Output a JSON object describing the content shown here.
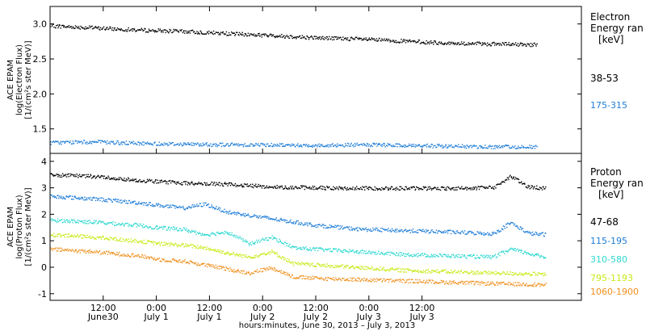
{
  "chart_data": [
    {
      "type": "scatter",
      "panel": "electron",
      "ylabel_lines": [
        "ACE EPAM",
        "log(Electron Flux)",
        "[1/(cm²s ster MeV)]"
      ],
      "ylim": [
        1.15,
        3.25
      ],
      "yticks": [
        {
          "value": 1.5,
          "label": "1.5"
        },
        {
          "value": 2.0,
          "label": "2.0"
        },
        {
          "value": 2.5,
          "label": "2.5"
        },
        {
          "value": 3.0,
          "label": "3.0"
        }
      ],
      "legend_title_lines": [
        "Electron",
        "Energy ran",
        "[keV]"
      ],
      "series": [
        {
          "name": "38-53",
          "color": "#000000",
          "points": [
            [
              0,
              2.98
            ],
            [
              10,
              2.95
            ],
            [
              20,
              2.92
            ],
            [
              30,
              2.9
            ],
            [
              40,
              2.87
            ],
            [
              50,
              2.84
            ],
            [
              60,
              2.81
            ],
            [
              70,
              2.79
            ],
            [
              80,
              2.76
            ],
            [
              90,
              2.73
            ],
            [
              100,
              2.72
            ],
            [
              110,
              2.71
            ]
          ]
        },
        {
          "name": "175-315",
          "color": "#1e7dd8",
          "points": [
            [
              0,
              1.31
            ],
            [
              10,
              1.32
            ],
            [
              20,
              1.3
            ],
            [
              30,
              1.29
            ],
            [
              40,
              1.28
            ],
            [
              50,
              1.28
            ],
            [
              60,
              1.27
            ],
            [
              70,
              1.28
            ],
            [
              80,
              1.27
            ],
            [
              90,
              1.26
            ],
            [
              100,
              1.25
            ],
            [
              110,
              1.25
            ]
          ]
        }
      ]
    },
    {
      "type": "scatter",
      "panel": "proton",
      "ylabel_lines": [
        "ACE EPAM",
        "log(Proton Flux)",
        "[1/(cm²s ster MeV)]"
      ],
      "ylim": [
        -1.25,
        4.3
      ],
      "yticks": [
        {
          "value": -1,
          "label": "-1"
        },
        {
          "value": 0,
          "label": "0"
        },
        {
          "value": 1,
          "label": "1"
        },
        {
          "value": 2,
          "label": "2"
        },
        {
          "value": 3,
          "label": "3"
        },
        {
          "value": 4,
          "label": "4"
        }
      ],
      "legend_title_lines": [
        "Proton",
        "Energy ran",
        "[keV]"
      ],
      "series": [
        {
          "name": "47-68",
          "color": "#000000",
          "points": [
            [
              0,
              3.5
            ],
            [
              10,
              3.45
            ],
            [
              20,
              3.3
            ],
            [
              30,
              3.2
            ],
            [
              40,
              3.15
            ],
            [
              50,
              3.05
            ],
            [
              60,
              3.02
            ],
            [
              70,
              3.0
            ],
            [
              80,
              3.0
            ],
            [
              90,
              3.0
            ],
            [
              100,
              3.02
            ],
            [
              104,
              3.45
            ],
            [
              108,
              3.05
            ],
            [
              112,
              3.0
            ]
          ]
        },
        {
          "name": "115-195",
          "color": "#1e7dd8",
          "points": [
            [
              0,
              2.7
            ],
            [
              10,
              2.6
            ],
            [
              20,
              2.45
            ],
            [
              30,
              2.25
            ],
            [
              35,
              2.4
            ],
            [
              40,
              2.1
            ],
            [
              50,
              1.85
            ],
            [
              60,
              1.6
            ],
            [
              70,
              1.45
            ],
            [
              80,
              1.4
            ],
            [
              90,
              1.35
            ],
            [
              100,
              1.28
            ],
            [
              104,
              1.7
            ],
            [
              108,
              1.3
            ],
            [
              112,
              1.25
            ]
          ]
        },
        {
          "name": "310-580",
          "color": "#2ed8d0",
          "points": [
            [
              0,
              1.8
            ],
            [
              10,
              1.72
            ],
            [
              20,
              1.6
            ],
            [
              25,
              1.5
            ],
            [
              30,
              1.45
            ],
            [
              35,
              1.25
            ],
            [
              40,
              1.35
            ],
            [
              45,
              0.9
            ],
            [
              50,
              1.15
            ],
            [
              55,
              0.75
            ],
            [
              60,
              0.7
            ],
            [
              70,
              0.6
            ],
            [
              80,
              0.5
            ],
            [
              90,
              0.45
            ],
            [
              100,
              0.4
            ],
            [
              104,
              0.7
            ],
            [
              112,
              0.38
            ]
          ]
        },
        {
          "name": "795-1193",
          "color": "#c8ea18",
          "points": [
            [
              0,
              1.25
            ],
            [
              10,
              1.15
            ],
            [
              20,
              1.0
            ],
            [
              25,
              0.9
            ],
            [
              30,
              0.85
            ],
            [
              35,
              0.75
            ],
            [
              40,
              0.55
            ],
            [
              45,
              0.4
            ],
            [
              50,
              0.6
            ],
            [
              55,
              0.15
            ],
            [
              60,
              0.1
            ],
            [
              70,
              0.0
            ],
            [
              80,
              -0.1
            ],
            [
              90,
              -0.15
            ],
            [
              100,
              -0.2
            ],
            [
              112,
              -0.25
            ]
          ]
        },
        {
          "name": "1060-1900",
          "color": "#f0901e",
          "points": [
            [
              0,
              0.7
            ],
            [
              10,
              0.6
            ],
            [
              20,
              0.45
            ],
            [
              25,
              0.3
            ],
            [
              30,
              0.25
            ],
            [
              35,
              0.1
            ],
            [
              40,
              -0.05
            ],
            [
              45,
              -0.2
            ],
            [
              50,
              0.0
            ],
            [
              55,
              -0.35
            ],
            [
              60,
              -0.4
            ],
            [
              70,
              -0.45
            ],
            [
              80,
              -0.5
            ],
            [
              90,
              -0.55
            ],
            [
              100,
              -0.6
            ],
            [
              112,
              -0.65
            ]
          ]
        }
      ]
    }
  ],
  "xaxis": {
    "xlim_hours": [
      0,
      120
    ],
    "ticks": [
      {
        "hours": 12,
        "time": "12:00",
        "date": "June30"
      },
      {
        "hours": 24,
        "time": "0:00",
        "date": "July 1"
      },
      {
        "hours": 36,
        "time": "12:00",
        "date": "July 1"
      },
      {
        "hours": 48,
        "time": "0:00",
        "date": "July 2"
      },
      {
        "hours": 60,
        "time": "12:00",
        "date": "July 2"
      },
      {
        "hours": 72,
        "time": "0:00",
        "date": "July 3"
      },
      {
        "hours": 84,
        "time": "12:00",
        "date": "July 3"
      }
    ],
    "title": "hours:minutes, June 30, 2013 – July  3, 2013"
  }
}
